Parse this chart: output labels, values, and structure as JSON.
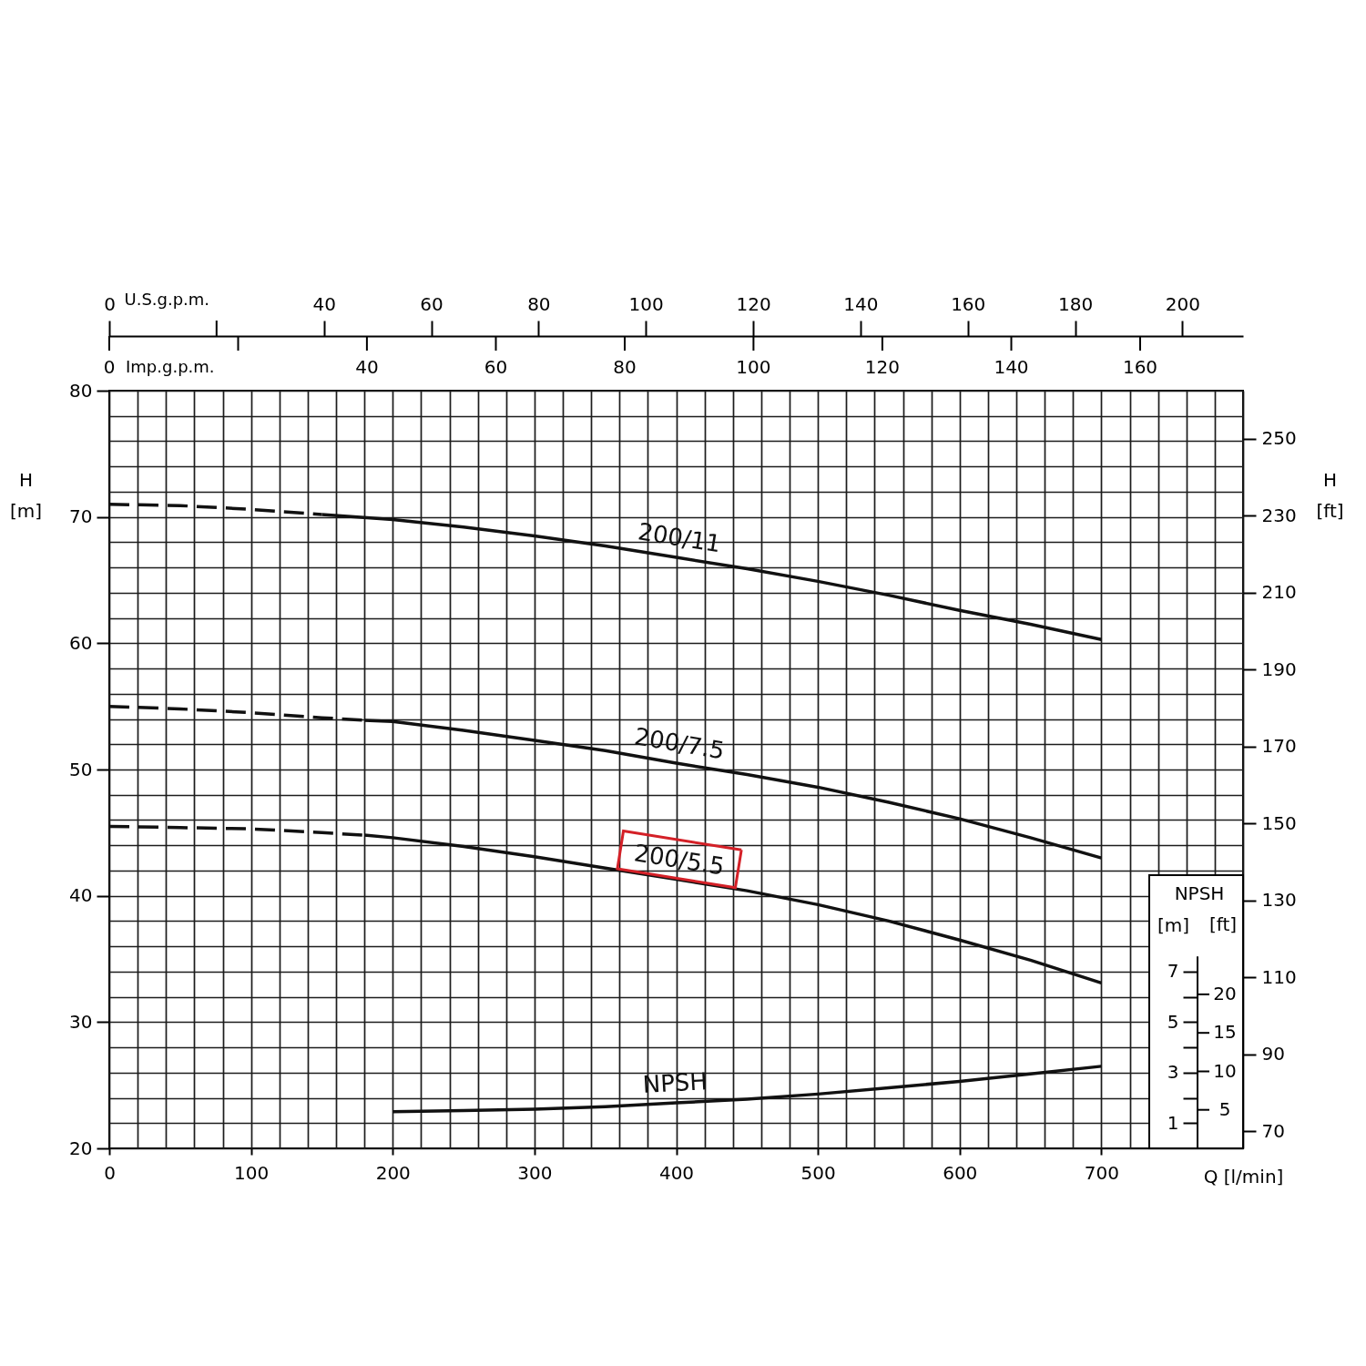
{
  "chart_data": {
    "type": "line",
    "xlabel": "Q [l/min]",
    "ylabel": "H\n[m]",
    "y2label": "H\n[ft]",
    "x2label": "U.S.g.p.m.",
    "y3label": "[m]",
    "annotations": [
      "NPSH",
      "[ft]",
      "Imp.g.p.m.",
      "0",
      "40",
      "60",
      "80",
      "100",
      "120",
      "140",
      "160",
      "5",
      "10",
      "15",
      "20"
    ],
    "xlim": [
      0,
      800
    ],
    "xticks": [
      0,
      {
        "value": 20,
        "label": null
      },
      {
        "value": 40,
        "label": null
      },
      {
        "value": 60,
        "label": null
      },
      {
        "value": 80,
        "label": null
      },
      100,
      {
        "value": 120,
        "label": null
      },
      {
        "value": 140,
        "label": null
      },
      {
        "value": 160,
        "label": null
      },
      {
        "value": 180,
        "label": null
      },
      200,
      {
        "value": 220,
        "label": null
      },
      {
        "value": 240,
        "label": null
      },
      {
        "value": 260,
        "label": null
      },
      {
        "value": 280,
        "label": null
      },
      300,
      {
        "value": 320,
        "label": null
      },
      {
        "value": 340,
        "label": null
      },
      {
        "value": 360,
        "label": null
      },
      {
        "value": 380,
        "label": null
      },
      400,
      {
        "value": 420,
        "label": null
      },
      {
        "value": 440,
        "label": null
      },
      {
        "value": 460,
        "label": null
      },
      {
        "value": 480,
        "label": null
      },
      500,
      {
        "value": 520,
        "label": null
      },
      {
        "value": 540,
        "label": null
      },
      {
        "value": 560,
        "label": null
      },
      {
        "value": 580,
        "label": null
      },
      600,
      {
        "value": 620,
        "label": null
      },
      {
        "value": 640,
        "label": null
      },
      {
        "value": 660,
        "label": null
      },
      {
        "value": 680,
        "label": null
      },
      700,
      {
        "value": 720,
        "label": null
      },
      {
        "value": 740,
        "label": null
      },
      {
        "value": 760,
        "label": null
      },
      {
        "value": 780,
        "label": null
      },
      {
        "value": 800,
        "label": null
      }
    ],
    "ylim": [
      20,
      80
    ],
    "yticks": [
      20,
      {
        "value": 22,
        "label": null
      },
      {
        "value": 24,
        "label": null
      },
      {
        "value": 26,
        "label": null
      },
      {
        "value": 28,
        "label": null
      },
      30,
      {
        "value": 32,
        "label": null
      },
      {
        "value": 34,
        "label": null
      },
      {
        "value": 36,
        "label": null
      },
      {
        "value": 38,
        "label": null
      },
      40,
      {
        "value": 42,
        "label": null
      },
      {
        "value": 44,
        "label": null
      },
      {
        "value": 46,
        "label": null
      },
      {
        "value": 48,
        "label": null
      },
      50,
      {
        "value": 52,
        "label": null
      },
      {
        "value": 54,
        "label": null
      },
      {
        "value": 56,
        "label": null
      },
      {
        "value": 58,
        "label": null
      },
      60,
      {
        "value": 62,
        "label": null
      },
      {
        "value": 64,
        "label": null
      },
      {
        "value": 66,
        "label": null
      },
      {
        "value": 68,
        "label": null
      },
      70,
      {
        "value": 72,
        "label": null
      },
      {
        "value": 74,
        "label": null
      },
      {
        "value": 76,
        "label": null
      },
      {
        "value": 78,
        "label": null
      },
      80
    ],
    "y2lim": [
      65.6,
      262.5
    ],
    "y2ticks": [
      70,
      90,
      110,
      130,
      150,
      170,
      190,
      210,
      230,
      250
    ],
    "x2lim": [
      0,
      211.3
    ],
    "x2ticks": [
      0,
      40,
      60,
      80,
      100,
      120,
      140,
      160,
      180,
      200
    ],
    "y3lim": [
      0,
      30
    ],
    "y3ticks": [
      1,
      {
        "value": 2,
        "label": null
      },
      3,
      {
        "value": 4,
        "label": null
      },
      5,
      {
        "value": 6,
        "label": null
      },
      7
    ],
    "grid": true,
    "series": [
      {
        "color": "#111111",
        "line_style": "dashed",
        "x": [
          0,
          50,
          100,
          150
        ],
        "values": [
          71.0,
          70.9,
          70.6,
          70.2
        ]
      },
      {
        "name": "200/11",
        "color": "#111111",
        "x": [
          150,
          200,
          250,
          300,
          350,
          400,
          450,
          500,
          550,
          600,
          650,
          700
        ],
        "values": [
          70.2,
          69.8,
          69.2,
          68.5,
          67.7,
          66.8,
          65.9,
          64.9,
          63.8,
          62.6,
          61.5,
          60.3
        ]
      },
      {
        "color": "#111111",
        "line_style": "dashed",
        "x": [
          0,
          50,
          100,
          150,
          180
        ],
        "values": [
          55.0,
          54.8,
          54.5,
          54.1,
          53.9
        ]
      },
      {
        "name": "200/7.5",
        "color": "#111111",
        "x": [
          180,
          200,
          250,
          300,
          350,
          400,
          450,
          500,
          550,
          600,
          650,
          700
        ],
        "values": [
          53.9,
          53.8,
          53.1,
          52.3,
          51.5,
          50.5,
          49.6,
          48.6,
          47.4,
          46.1,
          44.6,
          43.0
        ]
      },
      {
        "color": "#111111",
        "line_style": "dashed",
        "x": [
          0,
          50,
          100,
          150,
          180
        ],
        "values": [
          45.5,
          45.4,
          45.3,
          45.0,
          44.8
        ]
      },
      {
        "name": "200/5.5",
        "color": "#111111",
        "x": [
          180,
          200,
          250,
          300,
          350,
          400,
          450,
          500,
          550,
          600,
          650,
          700
        ],
        "values": [
          44.8,
          44.6,
          43.9,
          43.1,
          42.2,
          41.3,
          40.4,
          39.3,
          38.0,
          36.5,
          34.9,
          33.1
        ]
      },
      {
        "name": "NPSH",
        "color": "#111111",
        "axis": "y3",
        "x": [
          200,
          250,
          300,
          350,
          400,
          450,
          500,
          550,
          600,
          650,
          700
        ],
        "values": [
          1.45,
          1.5,
          1.55,
          1.65,
          1.8,
          1.95,
          2.15,
          2.4,
          2.65,
          2.95,
          3.25
        ]
      }
    ]
  }
}
